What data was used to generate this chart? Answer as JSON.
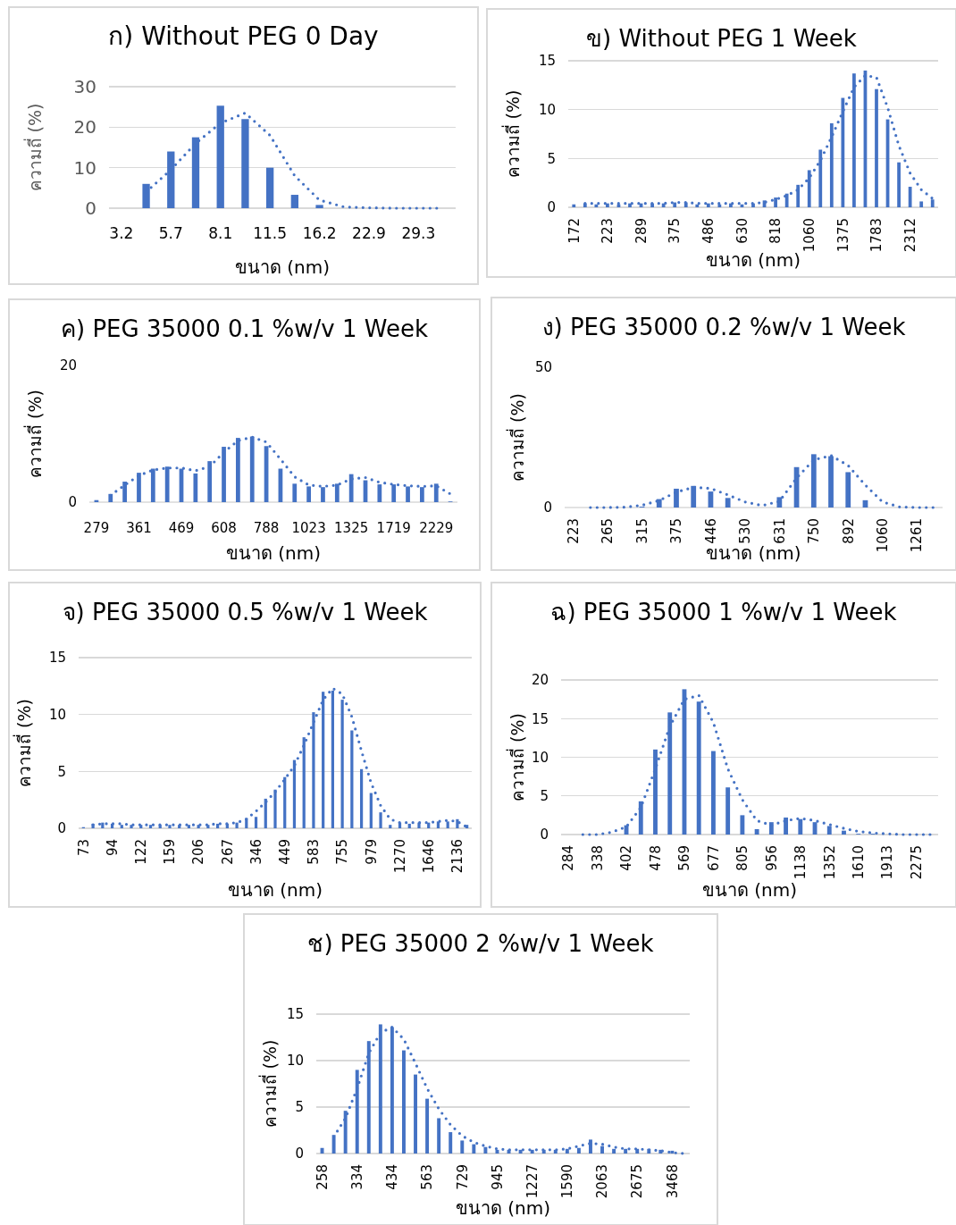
{
  "chart_data": [
    {
      "type": "bar",
      "title": "ก) Without PEG 0 Day",
      "xlabel": "ขนาด (nm)",
      "ylabel": "ความถี่ (%)",
      "grid": "y",
      "ylim": [
        0,
        30
      ],
      "yticks": [
        0,
        10,
        20,
        30
      ],
      "categories": [
        "3.2",
        null,
        "5.7",
        null,
        "8.1",
        null,
        "11.5",
        null,
        "16.2",
        null,
        "22.9",
        null,
        "29.3",
        null
      ],
      "series": [
        {
          "color": "#4472c4",
          "values": [
            0,
            6,
            14,
            17.5,
            25.3,
            22,
            10,
            3.3,
            0.8,
            0,
            0,
            0,
            0,
            0
          ]
        },
        {
          "type": "line",
          "line_style": "dotted",
          "color": "#4472c4",
          "values": [
            null,
            4,
            9.5,
            16,
            21,
            23.5,
            18,
            8,
            2,
            0.3,
            0.1,
            0,
            0,
            0
          ]
        }
      ]
    },
    {
      "type": "bar",
      "title": "ข) Without PEG 1 Week",
      "xlabel": "ขนาด (nm)",
      "ylabel": "ความถี่ (%)",
      "grid": "y",
      "ylim": [
        0,
        15
      ],
      "yticks": [
        0,
        5,
        10,
        15
      ],
      "categories": [
        "172",
        null,
        null,
        "223",
        null,
        null,
        "289",
        null,
        null,
        "375",
        null,
        null,
        "486",
        null,
        null,
        "630",
        null,
        null,
        "818",
        null,
        null,
        "1060",
        null,
        null,
        "1375",
        null,
        null,
        "1783",
        null,
        null,
        "2312",
        null,
        null
      ],
      "series": [
        {
          "color": "#4472c4",
          "values": [
            0.3,
            0.4,
            0.3,
            0.4,
            0.3,
            0.4,
            0.4,
            0.4,
            0.4,
            0.5,
            0.5,
            0.3,
            0.4,
            0.3,
            0.4,
            0.3,
            0.4,
            0.7,
            1.0,
            1.4,
            2.3,
            3.8,
            5.9,
            8.6,
            11.2,
            13.7,
            14.0,
            12.1,
            9.0,
            4.6,
            2.1,
            0.6,
            0.8
          ]
        },
        {
          "type": "line",
          "line_style": "dotted",
          "color": "#4472c4",
          "values": [
            null,
            0.4,
            0.4,
            0.4,
            0.4,
            0.4,
            0.4,
            0.4,
            0.4,
            0.5,
            0.5,
            0.4,
            0.4,
            0.4,
            0.4,
            0.4,
            0.4,
            0.5,
            0.8,
            1.2,
            1.8,
            3.0,
            4.8,
            7.2,
            9.8,
            12.3,
            13.5,
            13.3,
            10.2,
            6.3,
            3.5,
            1.8,
            0.9
          ]
        }
      ]
    },
    {
      "type": "bar",
      "title": "ค) PEG 35000 0.1 %w/v 1 Week",
      "xlabel": "ขนาด (nm)",
      "ylabel": "ความถี่ (%)",
      "ylim": [
        0,
        20
      ],
      "yticks": [
        0,
        20
      ],
      "categories": [
        "279",
        null,
        null,
        "361",
        null,
        null,
        "469",
        null,
        null,
        "608",
        null,
        null,
        "788",
        null,
        null,
        "1023",
        null,
        null,
        "1325",
        null,
        null,
        "1719",
        null,
        null,
        "2229",
        null
      ],
      "series": [
        {
          "color": "#4472c4",
          "values": [
            0.3,
            1.2,
            3.0,
            4.3,
            4.9,
            5.2,
            4.9,
            4.2,
            6.0,
            8.1,
            9.4,
            9.6,
            8.2,
            4.9,
            2.7,
            2.3,
            2.2,
            2.7,
            4.1,
            3.2,
            2.6,
            2.6,
            2.3,
            2.2,
            2.7,
            0.1
          ]
        },
        {
          "type": "line",
          "line_style": "dotted",
          "color": "#4472c4",
          "values": [
            null,
            1.0,
            2.5,
            3.9,
            4.7,
            5.0,
            5.0,
            4.6,
            5.2,
            7.3,
            9.0,
            9.5,
            8.8,
            6.3,
            3.7,
            2.5,
            2.3,
            2.5,
            3.4,
            3.6,
            2.9,
            2.6,
            2.4,
            2.3,
            2.4,
            1.2
          ]
        }
      ]
    },
    {
      "type": "bar",
      "title": "ง) PEG 35000 0.2 %w/v 1 Week",
      "xlabel": "ขนาด (nm)",
      "ylabel": "ความถี่ (%)",
      "ylim": [
        0,
        50
      ],
      "yticks": [
        0,
        50
      ],
      "categories": [
        "223",
        null,
        "265",
        null,
        "315",
        null,
        "375",
        null,
        "446",
        null,
        "530",
        null,
        "631",
        null,
        "750",
        null,
        "892",
        null,
        "1060",
        null,
        "1261",
        null
      ],
      "series": [
        {
          "color": "#4472c4",
          "values": [
            0,
            0,
            0,
            0,
            0.3,
            3.0,
            6.7,
            7.7,
            5.7,
            3.4,
            0,
            0,
            3.7,
            14.4,
            19.0,
            18.3,
            12.6,
            2.6,
            0,
            0,
            0,
            0
          ]
        },
        {
          "type": "line",
          "line_style": "dotted",
          "color": "#4472c4",
          "values": [
            null,
            0,
            0,
            0.1,
            0.8,
            2.5,
            5.5,
            7.2,
            6.8,
            4.5,
            2.0,
            0.7,
            2.2,
            10.5,
            17.0,
            18.5,
            15.0,
            8.0,
            2.0,
            0.2,
            0,
            0
          ]
        }
      ]
    },
    {
      "type": "bar",
      "title": "จ) PEG 35000 0.5 %w/v 1 Week",
      "xlabel": "ขนาด (nm)",
      "ylabel": "ความถี่ (%)",
      "grid": "y",
      "ylim": [
        0,
        15
      ],
      "yticks": [
        0,
        5,
        10,
        15
      ],
      "categories": [
        "73",
        null,
        null,
        "94",
        null,
        null,
        "122",
        null,
        null,
        "159",
        null,
        null,
        "206",
        null,
        null,
        "267",
        null,
        null,
        "346",
        null,
        null,
        "449",
        null,
        null,
        "583",
        null,
        null,
        "755",
        null,
        null,
        "979",
        null,
        null,
        "1270",
        null,
        null,
        "1646",
        null,
        null,
        "2136",
        null
      ],
      "series": [
        {
          "color": "#4472c4",
          "values": [
            0.1,
            0.4,
            0.5,
            0.4,
            0.3,
            0.3,
            0.3,
            0.3,
            0.3,
            0.3,
            0.3,
            0.3,
            0.3,
            0.3,
            0.4,
            0.4,
            0.5,
            0.9,
            1.0,
            2.6,
            3.4,
            4.5,
            6.0,
            8.0,
            10.2,
            12.0,
            12.1,
            11.3,
            8.6,
            5.2,
            3.1,
            1.4,
            0.3,
            0.5,
            0.4,
            0.5,
            0.5,
            0.6,
            0.6,
            0.8,
            0.3
          ]
        },
        {
          "type": "line",
          "line_style": "dotted",
          "color": "#4472c4",
          "values": [
            null,
            0.3,
            0.4,
            0.4,
            0.4,
            0.3,
            0.3,
            0.3,
            0.3,
            0.3,
            0.3,
            0.3,
            0.3,
            0.3,
            0.4,
            0.4,
            0.5,
            0.8,
            1.5,
            2.3,
            3.2,
            4.3,
            5.5,
            7.3,
            9.3,
            11.3,
            12.3,
            11.8,
            9.8,
            6.8,
            4.0,
            2.0,
            0.8,
            0.5,
            0.5,
            0.5,
            0.5,
            0.6,
            0.7,
            0.6,
            0.1
          ]
        }
      ]
    },
    {
      "type": "bar",
      "title": "ฉ) PEG 35000 1 %w/v 1 Week",
      "xlabel": "ขนาด (nm)",
      "ylabel": "ความถี่ (%)",
      "grid": "y",
      "ylim": [
        0,
        20
      ],
      "yticks": [
        0,
        5,
        10,
        15,
        20
      ],
      "categories": [
        "284",
        null,
        "338",
        null,
        "402",
        null,
        "478",
        null,
        "569",
        null,
        "677",
        null,
        "805",
        null,
        "956",
        null,
        "1138",
        null,
        "1352",
        null,
        "1610",
        null,
        "1913",
        null,
        "2275",
        null
      ],
      "series": [
        {
          "color": "#4472c4",
          "values": [
            0,
            0,
            0,
            0,
            1.2,
            4.3,
            11.0,
            15.8,
            18.8,
            17.2,
            10.8,
            6.1,
            2.5,
            0.7,
            1.6,
            2.2,
            2.0,
            1.6,
            1.1,
            0.5,
            0.1,
            0.1,
            0,
            0,
            0,
            0
          ]
        },
        {
          "type": "line",
          "line_style": "dotted",
          "color": "#4472c4",
          "values": [
            null,
            0,
            0,
            0.3,
            1.0,
            3.5,
            8.5,
            14.0,
            17.5,
            18.0,
            14.5,
            8.5,
            4.5,
            1.8,
            1.2,
            1.8,
            2.1,
            1.8,
            1.3,
            0.8,
            0.4,
            0.2,
            0.1,
            0,
            0,
            0
          ]
        }
      ]
    },
    {
      "type": "bar",
      "title": "ช) PEG 35000 2 %w/v 1 Week",
      "xlabel": "ขนาด (nm)",
      "ylabel": "ความถี่ (%)",
      "grid": "y",
      "ylim": [
        0,
        15
      ],
      "yticks": [
        0,
        5,
        10,
        15
      ],
      "categories": [
        "258",
        null,
        null,
        "334",
        null,
        null,
        "434",
        null,
        null,
        "563",
        null,
        null,
        "729",
        null,
        null,
        "945",
        null,
        null,
        "1227",
        null,
        null,
        "1590",
        null,
        null,
        "2063",
        null,
        null,
        "2675",
        null,
        null,
        "3468",
        null
      ],
      "series": [
        {
          "color": "#4472c4",
          "values": [
            0.6,
            2.0,
            4.6,
            9.0,
            12.1,
            13.9,
            13.6,
            11.1,
            8.5,
            5.9,
            3.8,
            2.3,
            1.4,
            1.0,
            0.7,
            0.4,
            0.4,
            0.4,
            0.4,
            0.4,
            0.4,
            0.5,
            0.6,
            1.5,
            0.8,
            0.5,
            0.5,
            0.5,
            0.5,
            0.4,
            0.3,
            null
          ]
        },
        {
          "type": "line",
          "line_style": "dotted",
          "color": "#4472c4",
          "values": [
            null,
            1.8,
            3.8,
            7.0,
            10.8,
            13.0,
            13.6,
            12.3,
            9.7,
            7.0,
            4.8,
            3.1,
            1.9,
            1.2,
            0.8,
            0.5,
            0.4,
            0.4,
            0.4,
            0.4,
            0.4,
            0.5,
            0.8,
            1.1,
            1.0,
            0.7,
            0.5,
            0.5,
            0.4,
            0.3,
            0.1,
            0
          ]
        }
      ]
    }
  ]
}
